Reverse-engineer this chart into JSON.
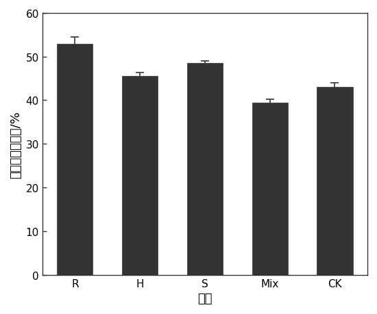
{
  "categories": [
    "R",
    "H",
    "S",
    "Mix",
    "CK"
  ],
  "values": [
    53.0,
    45.5,
    48.5,
    39.5,
    43.0
  ],
  "errors": [
    1.5,
    0.8,
    0.5,
    0.8,
    1.0
  ],
  "bar_color": "#333333",
  "bar_edge_color": "#333333",
  "background_color": "#ffffff",
  "xlabel": "组别",
  "ylabel": "黄丝藻油脂含量/%",
  "ylim": [
    0,
    60
  ],
  "yticks": [
    0,
    10,
    20,
    30,
    40,
    50,
    60
  ],
  "title": "",
  "bar_width": 0.55,
  "xlabel_fontsize": 13,
  "ylabel_fontsize": 13,
  "tick_fontsize": 11
}
